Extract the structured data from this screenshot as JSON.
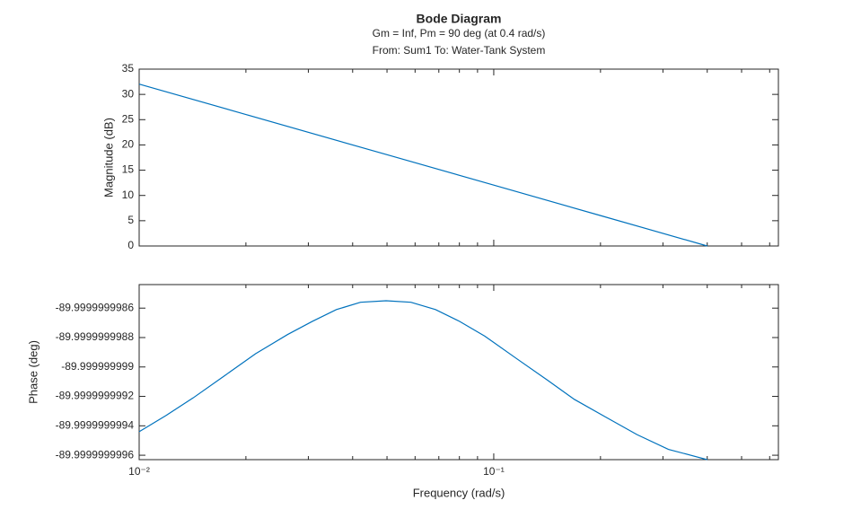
{
  "chart_data": [
    {
      "type": "line",
      "title": "Bode Diagram",
      "subtitle": "Gm = Inf,  Pm = 90 deg (at 0.4 rad/s)",
      "annotation": "From: Sum1  To: Water-Tank System",
      "ylabel": "Magnitude (dB)",
      "log_x": true,
      "box": true,
      "x": [
        0.01,
        0.02,
        0.05,
        0.1,
        0.2,
        0.4
      ],
      "series": [
        {
          "color": "#0072bd",
          "values": [
            32.04,
            26.02,
            18.06,
            12.04,
            6.02,
            0
          ]
        }
      ],
      "xlim": [
        0.01,
        0.635
      ],
      "xticks": [
        0.01,
        0.1
      ],
      "xminorticks": [
        0.02,
        0.03,
        0.04,
        0.05,
        0.06,
        0.07,
        0.08,
        0.09,
        0.2,
        0.3,
        0.4,
        0.5,
        0.6
      ],
      "ylim": [
        0,
        35
      ],
      "yticks": [
        0,
        5,
        10,
        15,
        20,
        25,
        30,
        35
      ]
    },
    {
      "type": "line",
      "ylabel": "Phase (deg)",
      "xlabel": "Frequency (rad/s)",
      "log_x": true,
      "box": true,
      "x": [
        0.01,
        0.0119,
        0.0142,
        0.0174,
        0.0213,
        0.0262,
        0.0308,
        0.036,
        0.0421,
        0.0497,
        0.0584,
        0.0685,
        0.0801,
        0.0943,
        0.1155,
        0.1418,
        0.1687,
        0.2067,
        0.2536,
        0.3109,
        0.4
      ],
      "series": [
        {
          "color": "#0072bd",
          "values": [
            -89.99999999944,
            -89.99999999933,
            -89.99999999921,
            -89.99999999906,
            -89.99999999891,
            -89.99999999878,
            -89.99999999869,
            -89.99999999861,
            -89.99999999856,
            -89.99999999855,
            -89.99999999856,
            -89.99999999861,
            -89.99999999869,
            -89.99999999879,
            -89.99999999894,
            -89.99999999909,
            -89.99999999922,
            -89.99999999934,
            -89.99999999946,
            -89.99999999956,
            -89.99999999963
          ]
        }
      ],
      "xlim": [
        0.01,
        0.635
      ],
      "xticks": [
        {
          "value": 0.01,
          "label": "10⁻²"
        },
        {
          "value": 0.1,
          "label": "10⁻¹"
        }
      ],
      "xminorticks": [
        0.02,
        0.03,
        0.04,
        0.05,
        0.06,
        0.07,
        0.08,
        0.09,
        0.2,
        0.3,
        0.4,
        0.5,
        0.6
      ],
      "ylim": [
        -89.99999999963,
        -89.99999999844
      ],
      "yticks": [
        -89.9999999996,
        -89.9999999994,
        -89.9999999992,
        -89.999999999,
        -89.9999999988,
        -89.9999999986
      ]
    }
  ]
}
